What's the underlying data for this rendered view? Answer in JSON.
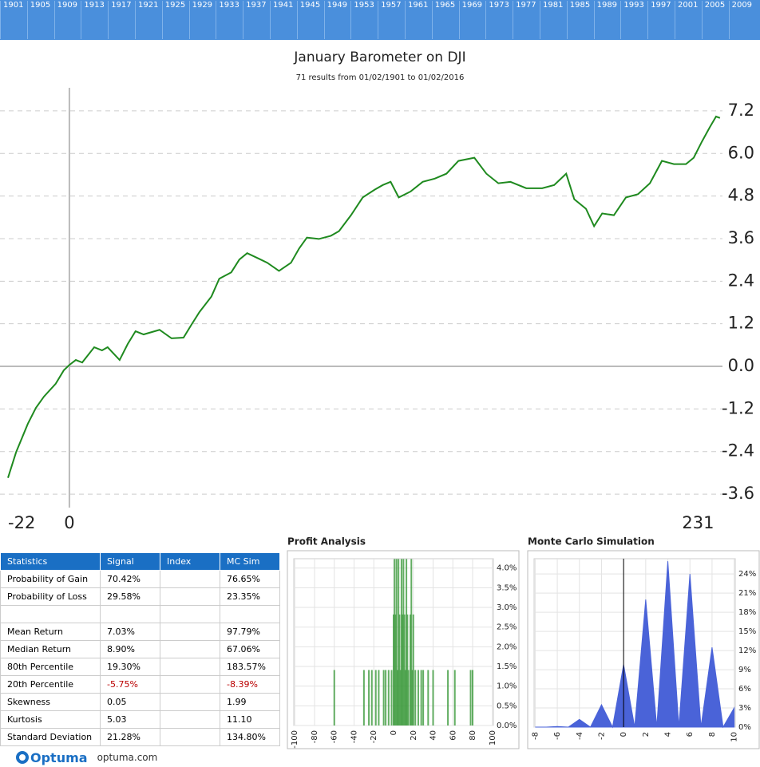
{
  "timeline": {
    "years": [
      "1901",
      "1905",
      "1909",
      "1913",
      "1917",
      "1921",
      "1925",
      "1929",
      "1933",
      "1937",
      "1941",
      "1945",
      "1949",
      "1953",
      "1957",
      "1961",
      "1965",
      "1969",
      "1973",
      "1977",
      "1981",
      "1985",
      "1989",
      "1993",
      "1997",
      "2001",
      "2005",
      "2009"
    ]
  },
  "chart_data": [
    {
      "type": "line",
      "title": "January Barometer on DJI",
      "subtitle": "71 results from 01/02/1901 to 01/02/2016",
      "color": "#1f8a1f",
      "grid": true,
      "x": [
        -22,
        -19.1,
        -14.9,
        -12,
        -9.1,
        -4.9,
        -2,
        0,
        2.3,
        4.6,
        8.9,
        11.7,
        13.7,
        18,
        20.9,
        23.7,
        26.6,
        32.3,
        36.6,
        40.9,
        43.7,
        46.6,
        50.9,
        53.7,
        58,
        60.9,
        63.7,
        68,
        70.9,
        75.1,
        79.4,
        82.3,
        85.1,
        89.4,
        93.7,
        96.6,
        100.9,
        105.1,
        109.4,
        112.3,
        115.1,
        118,
        122.3,
        126.6,
        130.9,
        135.1,
        139.4,
        145.1,
        149.4,
        153.7,
        158,
        163.7,
        169.4,
        173.7,
        178,
        180.9,
        185.1,
        188,
        190.9,
        195.1,
        199.4,
        203.7,
        208,
        212.3,
        216.6,
        220.9,
        223.7,
        226.6,
        229.4,
        231.7,
        233.1
      ],
      "values": [
        -3.14,
        -2.42,
        -1.62,
        -1.17,
        -0.85,
        -0.49,
        -0.11,
        0.04,
        0.18,
        0.11,
        0.54,
        0.45,
        0.54,
        0.18,
        0.63,
        0.99,
        0.9,
        1.03,
        0.79,
        0.81,
        1.17,
        1.53,
        1.97,
        2.47,
        2.65,
        3.01,
        3.19,
        3.03,
        2.92,
        2.69,
        2.92,
        3.32,
        3.63,
        3.59,
        3.68,
        3.81,
        4.26,
        4.76,
        4.98,
        5.11,
        5.2,
        4.76,
        4.93,
        5.2,
        5.29,
        5.43,
        5.79,
        5.88,
        5.43,
        5.16,
        5.2,
        5.02,
        5.02,
        5.11,
        5.43,
        4.71,
        4.44,
        3.95,
        4.31,
        4.26,
        4.76,
        4.85,
        5.16,
        5.79,
        5.7,
        5.7,
        5.88,
        6.33,
        6.73,
        7.04,
        7.0
      ],
      "xlim": [
        -22,
        234
      ],
      "xticks": [
        -22,
        0,
        231
      ],
      "ylim": [
        -3.98,
        7.85
      ],
      "yticks": [
        7.2,
        {
          "value": 6,
          "label": "6.0"
        },
        4.8,
        3.6,
        2.4,
        1.2,
        {
          "value": 0,
          "label": "0.0"
        },
        -1.2,
        -2.4,
        -3.6
      ]
    },
    {
      "type": "bar",
      "title": "Profit Analysis",
      "color": "#3c9a3c",
      "grid": true,
      "x": [
        -60,
        -30,
        -25,
        -22,
        -18,
        -15,
        -10,
        -8,
        -5,
        -2,
        0,
        1,
        2,
        3,
        4,
        5,
        6,
        7,
        8,
        9,
        10,
        11,
        12,
        13,
        14,
        15,
        17,
        18,
        19,
        20,
        22,
        25,
        28,
        30,
        35,
        40,
        55,
        62,
        78,
        80
      ],
      "values": [
        1.41,
        1.41,
        1.41,
        1.41,
        1.41,
        1.41,
        1.41,
        1.41,
        1.41,
        1.41,
        2.82,
        4.23,
        2.82,
        4.23,
        1.41,
        4.23,
        2.82,
        1.41,
        4.23,
        2.82,
        4.23,
        2.82,
        1.41,
        4.23,
        2.82,
        1.41,
        2.82,
        4.23,
        1.41,
        2.82,
        1.41,
        1.41,
        1.41,
        1.41,
        1.41,
        1.41,
        1.41,
        1.41,
        1.41,
        1.41
      ],
      "xlim": [
        -101,
        101
      ],
      "xticks": [
        -100,
        -80,
        -60,
        -40,
        -20,
        0,
        20,
        40,
        60,
        80,
        100
      ],
      "ylim": [
        0,
        4.4
      ],
      "yticks": [
        {
          "value": 0,
          "label": "0.0%"
        },
        {
          "value": 0.5,
          "label": "0.5%"
        },
        {
          "value": 1,
          "label": "1.0%"
        },
        {
          "value": 1.5,
          "label": "1.5%"
        },
        {
          "value": 2,
          "label": "2.0%"
        },
        {
          "value": 2.5,
          "label": "2.5%"
        },
        {
          "value": 3,
          "label": "3.0%"
        },
        {
          "value": 3.5,
          "label": "3.5%"
        },
        {
          "value": 4,
          "label": "4.0%"
        }
      ]
    },
    {
      "type": "area",
      "title": "Monte Carlo Simulation",
      "color": "#4a63d8",
      "grid": true,
      "x": [
        -8,
        -7,
        -6,
        -5,
        -4,
        -3,
        -2,
        -1,
        0,
        1,
        2,
        3,
        4,
        5,
        6,
        7,
        8,
        9,
        10
      ],
      "values": [
        0,
        0,
        0.1,
        0,
        1.2,
        0,
        3.5,
        0,
        9.8,
        0,
        20,
        0,
        26,
        0,
        24,
        0,
        12.5,
        0,
        3
      ],
      "xlim": [
        -8.1,
        10.1
      ],
      "xticks": [
        -8,
        -6,
        -4,
        -2,
        0,
        2,
        4,
        6,
        8,
        10
      ],
      "ylim": [
        0,
        27.4
      ],
      "yticks": [
        {
          "value": 0,
          "label": "0%"
        },
        {
          "value": 3,
          "label": "3%"
        },
        {
          "value": 6,
          "label": "6%"
        },
        {
          "value": 9,
          "label": "9%"
        },
        {
          "value": 12,
          "label": "12%"
        },
        {
          "value": 15,
          "label": "15%"
        },
        {
          "value": 18,
          "label": "18%"
        },
        {
          "value": 21,
          "label": "21%"
        },
        {
          "value": 24,
          "label": "24%"
        }
      ]
    }
  ],
  "table": {
    "columns": [
      "Statistics",
      "Signal",
      "Index",
      "MC Sim"
    ],
    "rows": [
      {
        "label": "Probability of Gain",
        "signal": "70.42%",
        "mc": "76.65%"
      },
      {
        "label": "Probability of Loss",
        "signal": "29.58%",
        "mc": "23.35%"
      },
      {
        "label": "Mean Return",
        "signal": "7.03%",
        "mc": "97.79%"
      },
      {
        "label": "Median Return",
        "signal": "8.90%",
        "mc": "67.06%"
      },
      {
        "label": "80th Percentile",
        "signal": "19.30%",
        "mc": "183.57%"
      },
      {
        "label": "20th Percentile",
        "signal": "-5.75%",
        "mc": "-8.39%"
      },
      {
        "label": "Skewness",
        "signal": "0.05",
        "mc": "1.99"
      },
      {
        "label": "Kurtosis",
        "signal": "5.03",
        "mc": "11.10"
      },
      {
        "label": "Standard Deviation",
        "signal": "21.28%",
        "mc": "134.80%"
      }
    ]
  },
  "footer": {
    "logo": "Optuma",
    "url": "optuma.com"
  }
}
